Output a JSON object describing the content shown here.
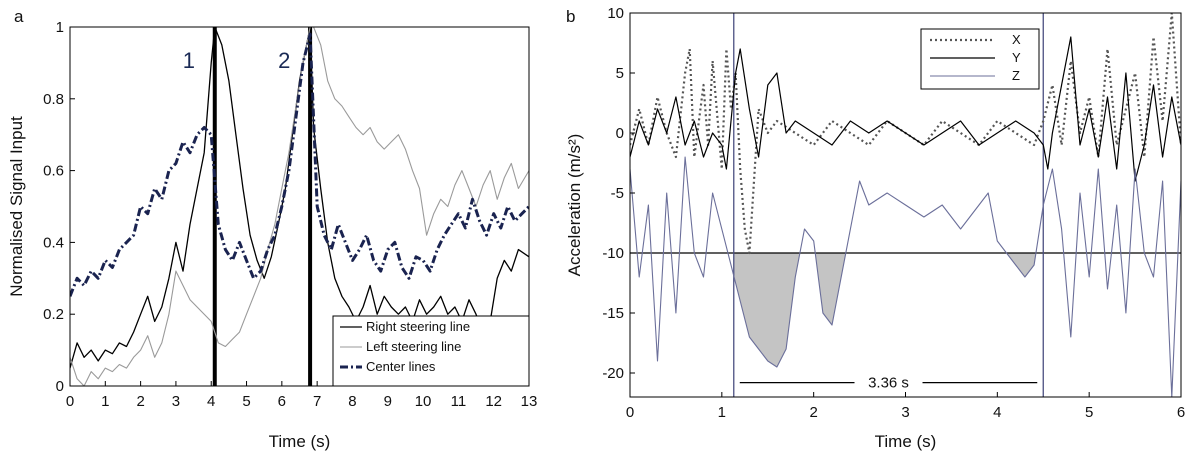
{
  "chart_data": [
    {
      "type": "line",
      "panel_label": "a",
      "xlabel": "Time (s)",
      "ylabel": "Normalised Signal Input",
      "xlim": [
        0,
        13
      ],
      "ylim": [
        0,
        1
      ],
      "xticks": [
        "0",
        "1",
        "2",
        "3",
        "4",
        "5",
        "6",
        "7",
        "8",
        "9",
        "10",
        "11",
        "12",
        "13"
      ],
      "yticks": [
        "0",
        "0.2",
        "0.4",
        "0.6",
        "0.8",
        "1"
      ],
      "grid": false,
      "legend_position": "bottom-right",
      "markers": [
        {
          "x": 4.1,
          "label": "1"
        },
        {
          "x": 6.8,
          "label": "2"
        }
      ],
      "series": [
        {
          "name": "Right steering line",
          "color": "#000000",
          "style": "solid",
          "x": [
            0,
            0.2,
            0.4,
            0.6,
            0.8,
            1.0,
            1.2,
            1.4,
            1.6,
            1.8,
            2.0,
            2.2,
            2.4,
            2.6,
            2.8,
            3.0,
            3.2,
            3.4,
            3.6,
            3.8,
            4.0,
            4.1,
            4.3,
            4.5,
            4.7,
            4.9,
            5.1,
            5.3,
            5.5,
            5.7,
            5.9,
            6.1,
            6.3,
            6.5,
            6.7,
            6.8,
            6.9,
            7.1,
            7.3,
            7.5,
            7.7,
            7.9,
            8.1,
            8.3,
            8.5,
            8.7,
            8.9,
            9.1,
            9.3,
            9.5,
            9.7,
            9.9,
            10.1,
            10.3,
            10.5,
            10.7,
            10.9,
            11.1,
            11.3,
            11.5,
            11.7,
            11.9,
            12.1,
            12.3,
            12.5,
            12.7,
            13.0
          ],
          "y": [
            0.05,
            0.12,
            0.08,
            0.1,
            0.07,
            0.1,
            0.09,
            0.12,
            0.11,
            0.15,
            0.2,
            0.25,
            0.18,
            0.22,
            0.3,
            0.4,
            0.32,
            0.45,
            0.55,
            0.65,
            0.9,
            1.0,
            0.95,
            0.85,
            0.7,
            0.55,
            0.42,
            0.35,
            0.3,
            0.36,
            0.45,
            0.55,
            0.7,
            0.85,
            0.95,
            1.0,
            0.72,
            0.55,
            0.4,
            0.3,
            0.25,
            0.22,
            0.18,
            0.22,
            0.28,
            0.2,
            0.25,
            0.22,
            0.2,
            0.22,
            0.18,
            0.24,
            0.2,
            0.22,
            0.25,
            0.2,
            0.22,
            0.18,
            0.24,
            0.2,
            0.15,
            0.18,
            0.3,
            0.35,
            0.32,
            0.38,
            0.36
          ]
        },
        {
          "name": "Left steering line",
          "color": "#9a9a9a",
          "style": "solid",
          "x": [
            0,
            0.2,
            0.4,
            0.6,
            0.8,
            1.0,
            1.2,
            1.4,
            1.6,
            1.8,
            2.0,
            2.2,
            2.4,
            2.6,
            2.8,
            3.0,
            3.2,
            3.4,
            3.6,
            3.8,
            4.0,
            4.2,
            4.4,
            4.6,
            4.8,
            5.0,
            5.2,
            5.4,
            5.6,
            5.8,
            6.0,
            6.2,
            6.4,
            6.6,
            6.8,
            6.9,
            7.1,
            7.3,
            7.5,
            7.7,
            7.9,
            8.1,
            8.3,
            8.5,
            8.7,
            8.9,
            9.1,
            9.3,
            9.5,
            9.7,
            9.9,
            10.1,
            10.3,
            10.5,
            10.7,
            10.9,
            11.1,
            11.3,
            11.5,
            11.7,
            11.9,
            12.1,
            12.3,
            12.5,
            12.7,
            13.0
          ],
          "y": [
            0.08,
            0.02,
            0.0,
            0.04,
            0.02,
            0.05,
            0.04,
            0.06,
            0.05,
            0.08,
            0.1,
            0.14,
            0.08,
            0.12,
            0.2,
            0.32,
            0.28,
            0.24,
            0.22,
            0.2,
            0.18,
            0.12,
            0.11,
            0.13,
            0.15,
            0.2,
            0.25,
            0.3,
            0.38,
            0.45,
            0.55,
            0.65,
            0.78,
            0.9,
            1.0,
            1.0,
            0.95,
            0.85,
            0.8,
            0.78,
            0.75,
            0.72,
            0.7,
            0.72,
            0.68,
            0.66,
            0.68,
            0.7,
            0.66,
            0.6,
            0.55,
            0.42,
            0.48,
            0.52,
            0.5,
            0.56,
            0.6,
            0.55,
            0.5,
            0.56,
            0.6,
            0.52,
            0.58,
            0.62,
            0.55,
            0.6
          ]
        },
        {
          "name": "Center lines",
          "color": "#1a2350",
          "style": "dashdot",
          "x": [
            0,
            0.2,
            0.4,
            0.6,
            0.8,
            1.0,
            1.2,
            1.4,
            1.6,
            1.8,
            2.0,
            2.2,
            2.4,
            2.6,
            2.8,
            3.0,
            3.2,
            3.4,
            3.6,
            3.8,
            4.0,
            4.2,
            4.4,
            4.6,
            4.8,
            5.0,
            5.2,
            5.4,
            5.6,
            5.8,
            6.0,
            6.2,
            6.4,
            6.6,
            6.8,
            7.0,
            7.2,
            7.4,
            7.6,
            7.8,
            8.0,
            8.2,
            8.4,
            8.6,
            8.8,
            9.0,
            9.2,
            9.4,
            9.6,
            9.8,
            10.0,
            10.2,
            10.4,
            10.6,
            10.8,
            11.0,
            11.2,
            11.4,
            11.6,
            11.8,
            12.0,
            12.2,
            12.4,
            12.6,
            12.8,
            13.0
          ],
          "y": [
            0.25,
            0.3,
            0.28,
            0.32,
            0.3,
            0.35,
            0.33,
            0.38,
            0.4,
            0.42,
            0.5,
            0.48,
            0.55,
            0.52,
            0.6,
            0.62,
            0.68,
            0.65,
            0.7,
            0.72,
            0.7,
            0.45,
            0.38,
            0.35,
            0.4,
            0.35,
            0.3,
            0.32,
            0.38,
            0.42,
            0.5,
            0.6,
            0.75,
            0.9,
            0.98,
            0.5,
            0.42,
            0.38,
            0.45,
            0.4,
            0.35,
            0.38,
            0.42,
            0.35,
            0.32,
            0.38,
            0.4,
            0.33,
            0.3,
            0.36,
            0.35,
            0.32,
            0.38,
            0.42,
            0.45,
            0.48,
            0.44,
            0.52,
            0.46,
            0.42,
            0.48,
            0.44,
            0.5,
            0.46,
            0.48,
            0.5
          ]
        }
      ]
    },
    {
      "type": "line",
      "panel_label": "b",
      "xlabel": "Time (s)",
      "ylabel": "Acceleration (m/s²)",
      "xlim": [
        0,
        6
      ],
      "ylim": [
        -22,
        10
      ],
      "xticks": [
        "0",
        "1",
        "2",
        "3",
        "4",
        "5",
        "6"
      ],
      "yticks": [
        "10",
        "5",
        "0",
        "-5",
        "-10",
        "-15",
        "-20"
      ],
      "grid": false,
      "legend_position": "top-right",
      "threshold": -10,
      "event_lines_x": [
        1.13,
        4.5
      ],
      "duration_label": "3.36 s",
      "duration_y": -20.8,
      "shaded_region": "Z below -10 between the event lines",
      "series": [
        {
          "name": "X",
          "color": "#555555",
          "style": "dotted",
          "x": [
            0,
            0.1,
            0.2,
            0.3,
            0.4,
            0.5,
            0.6,
            0.65,
            0.7,
            0.8,
            0.85,
            0.9,
            1.0,
            1.05,
            1.1,
            1.15,
            1.2,
            1.25,
            1.3,
            1.35,
            1.4,
            1.5,
            1.6,
            1.8,
            2.0,
            2.2,
            2.4,
            2.6,
            2.8,
            3.0,
            3.2,
            3.4,
            3.6,
            3.8,
            4.0,
            4.2,
            4.4,
            4.5,
            4.6,
            4.7,
            4.8,
            4.9,
            5.0,
            5.1,
            5.2,
            5.3,
            5.4,
            5.5,
            5.6,
            5.7,
            5.8,
            5.9,
            6.0
          ],
          "y": [
            -1,
            2,
            -1,
            3,
            0,
            -2,
            5,
            7,
            -2,
            4,
            -1,
            6,
            -3,
            7,
            2,
            5,
            -3,
            -8,
            -10,
            -4,
            2,
            0,
            1,
            0,
            -1,
            1,
            0,
            -1,
            1,
            0,
            -1,
            1,
            0,
            -1,
            1,
            0,
            -1,
            1,
            4,
            -1,
            6,
            0,
            3,
            -2,
            7,
            -1,
            2,
            5,
            -2,
            8,
            1,
            10,
            -1
          ]
        },
        {
          "name": "Y",
          "color": "#000000",
          "style": "solid",
          "x": [
            0,
            0.1,
            0.2,
            0.3,
            0.4,
            0.5,
            0.6,
            0.7,
            0.8,
            0.9,
            1.0,
            1.05,
            1.1,
            1.15,
            1.2,
            1.3,
            1.4,
            1.5,
            1.6,
            1.7,
            1.8,
            2.0,
            2.2,
            2.4,
            2.6,
            2.8,
            3.0,
            3.2,
            3.4,
            3.6,
            3.8,
            4.0,
            4.2,
            4.4,
            4.5,
            4.55,
            4.6,
            4.7,
            4.8,
            4.9,
            5.0,
            5.1,
            5.2,
            5.3,
            5.4,
            5.5,
            5.6,
            5.7,
            5.8,
            5.9,
            6.0
          ],
          "y": [
            -2,
            1,
            -1,
            2,
            0,
            3,
            -1,
            1,
            -2,
            0,
            -1,
            -3,
            1,
            5,
            7,
            2,
            -2,
            4,
            5,
            0,
            1,
            0,
            -1,
            1,
            0,
            1,
            0,
            -1,
            0,
            1,
            -1,
            0,
            1,
            0,
            -1,
            -3,
            0,
            4,
            8,
            -1,
            2,
            -2,
            3,
            -3,
            5,
            -4,
            -1,
            4,
            -2,
            3,
            -1
          ]
        },
        {
          "name": "Z",
          "color": "#6b6f9a",
          "style": "solid",
          "x": [
            0,
            0.1,
            0.2,
            0.3,
            0.4,
            0.5,
            0.6,
            0.7,
            0.8,
            0.9,
            1.0,
            1.1,
            1.2,
            1.3,
            1.4,
            1.5,
            1.6,
            1.7,
            1.8,
            1.9,
            2.0,
            2.1,
            2.2,
            2.3,
            2.4,
            2.5,
            2.6,
            2.8,
            3.0,
            3.2,
            3.4,
            3.6,
            3.8,
            3.9,
            4.0,
            4.1,
            4.2,
            4.3,
            4.4,
            4.5,
            4.6,
            4.7,
            4.8,
            4.9,
            5.0,
            5.1,
            5.2,
            5.3,
            5.4,
            5.5,
            5.6,
            5.7,
            5.8,
            5.9,
            6.0
          ],
          "y": [
            -3,
            -12,
            -6,
            -19,
            -5,
            -15,
            -2,
            -10,
            -12,
            -5,
            -8,
            -11,
            -14,
            -17,
            -18,
            -19,
            -19.5,
            -18,
            -12,
            -8,
            -9,
            -15,
            -16,
            -12,
            -8,
            -4,
            -6,
            -5,
            -6,
            -7,
            -6,
            -8,
            -6,
            -5,
            -9,
            -10,
            -11,
            -12,
            -11,
            -6,
            -3,
            -8,
            -17,
            -5,
            -12,
            -3,
            -13,
            -6,
            -15,
            -3,
            -10,
            -12,
            -4,
            -22,
            -4
          ]
        }
      ]
    }
  ]
}
